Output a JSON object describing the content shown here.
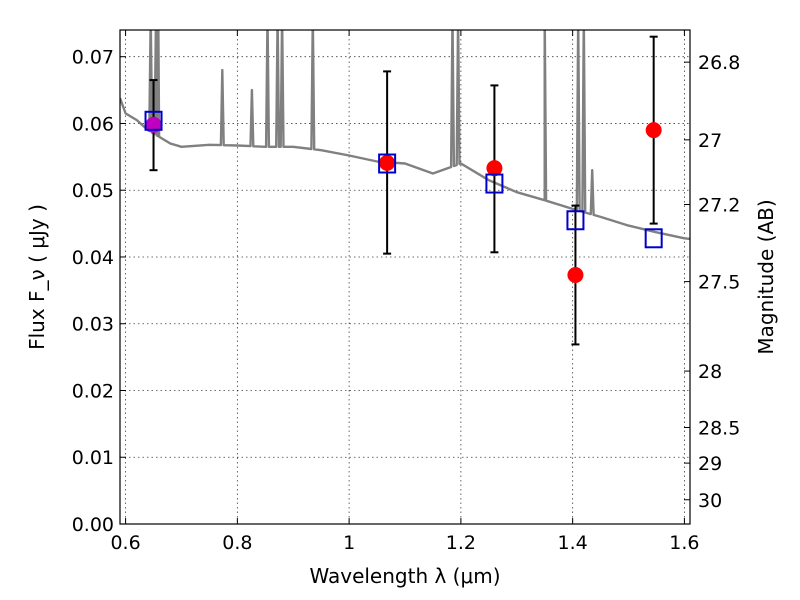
{
  "chart_data": {
    "type": "scatter",
    "xlabel": "Wavelength  λ (μm)",
    "ylabel": "Flux  F_ν  ( μJy )",
    "right_ylabel": "Magnitude (AB)",
    "xlim": [
      0.59,
      1.61
    ],
    "ylim": [
      0.0,
      0.074
    ],
    "x_ticks": [
      0.6,
      0.8,
      1.0,
      1.2,
      1.4,
      1.6
    ],
    "x_tick_labels": [
      "0.6",
      "0.8",
      "1",
      "1.2",
      "1.4",
      "1.6"
    ],
    "y_ticks": [
      0.0,
      0.01,
      0.02,
      0.03,
      0.04,
      0.05,
      0.06,
      0.07
    ],
    "y_tick_labels": [
      "0.00",
      "0.01",
      "0.02",
      "0.03",
      "0.04",
      "0.05",
      "0.06",
      "0.07"
    ],
    "mag_ticks": [
      26.8,
      27,
      27.2,
      27.5,
      28,
      28.5,
      29,
      30
    ],
    "mag_tick_labels": [
      "26.8",
      "27",
      "27.2",
      "27.5",
      "28",
      "28.5",
      "29",
      "30"
    ],
    "grid": true,
    "colors": {
      "observed": "#ff0000",
      "model": "#0000cc",
      "sed": "#808080",
      "errorbar": "#000000",
      "overlap": "#c000c0"
    },
    "observed": {
      "x": [
        0.65,
        1.068,
        1.26,
        1.405,
        1.545
      ],
      "y": [
        0.0598,
        0.0541,
        0.0533,
        0.0373,
        0.059
      ],
      "err_low": [
        0.053,
        0.0405,
        0.0407,
        0.0269,
        0.045
      ],
      "err_high": [
        0.0665,
        0.0678,
        0.0657,
        0.0477,
        0.073
      ]
    },
    "model_points": {
      "x": [
        0.65,
        1.068,
        1.26,
        1.405,
        1.545
      ],
      "y": [
        0.0604,
        0.054,
        0.051,
        0.0455,
        0.0428
      ]
    },
    "sed_continuum": {
      "x": [
        0.59,
        0.6,
        0.62,
        0.64,
        0.66,
        0.68,
        0.7,
        0.75,
        0.8,
        0.85,
        0.9,
        0.95,
        1.0,
        1.05,
        1.1,
        1.15,
        1.2,
        1.25,
        1.3,
        1.35,
        1.4,
        1.45,
        1.5,
        1.55,
        1.6,
        1.61
      ],
      "y": [
        0.0638,
        0.0615,
        0.0605,
        0.059,
        0.058,
        0.057,
        0.0565,
        0.0568,
        0.0567,
        0.0565,
        0.0565,
        0.056,
        0.0552,
        0.0543,
        0.054,
        0.0525,
        0.054,
        0.0515,
        0.0497,
        0.0485,
        0.0472,
        0.046,
        0.0447,
        0.0437,
        0.0428,
        0.0427
      ]
    },
    "sed_emission_lines": {
      "x": [
        0.645,
        0.6545,
        0.6585,
        0.773,
        0.826,
        0.854,
        0.872,
        0.88,
        0.935,
        1.185,
        1.195,
        1.35,
        1.41,
        1.42,
        1.435
      ],
      "y": [
        0.076,
        0.076,
        0.076,
        0.068,
        0.065,
        0.076,
        0.076,
        0.076,
        0.076,
        0.076,
        0.076,
        0.076,
        0.076,
        0.076,
        0.053
      ]
    }
  }
}
